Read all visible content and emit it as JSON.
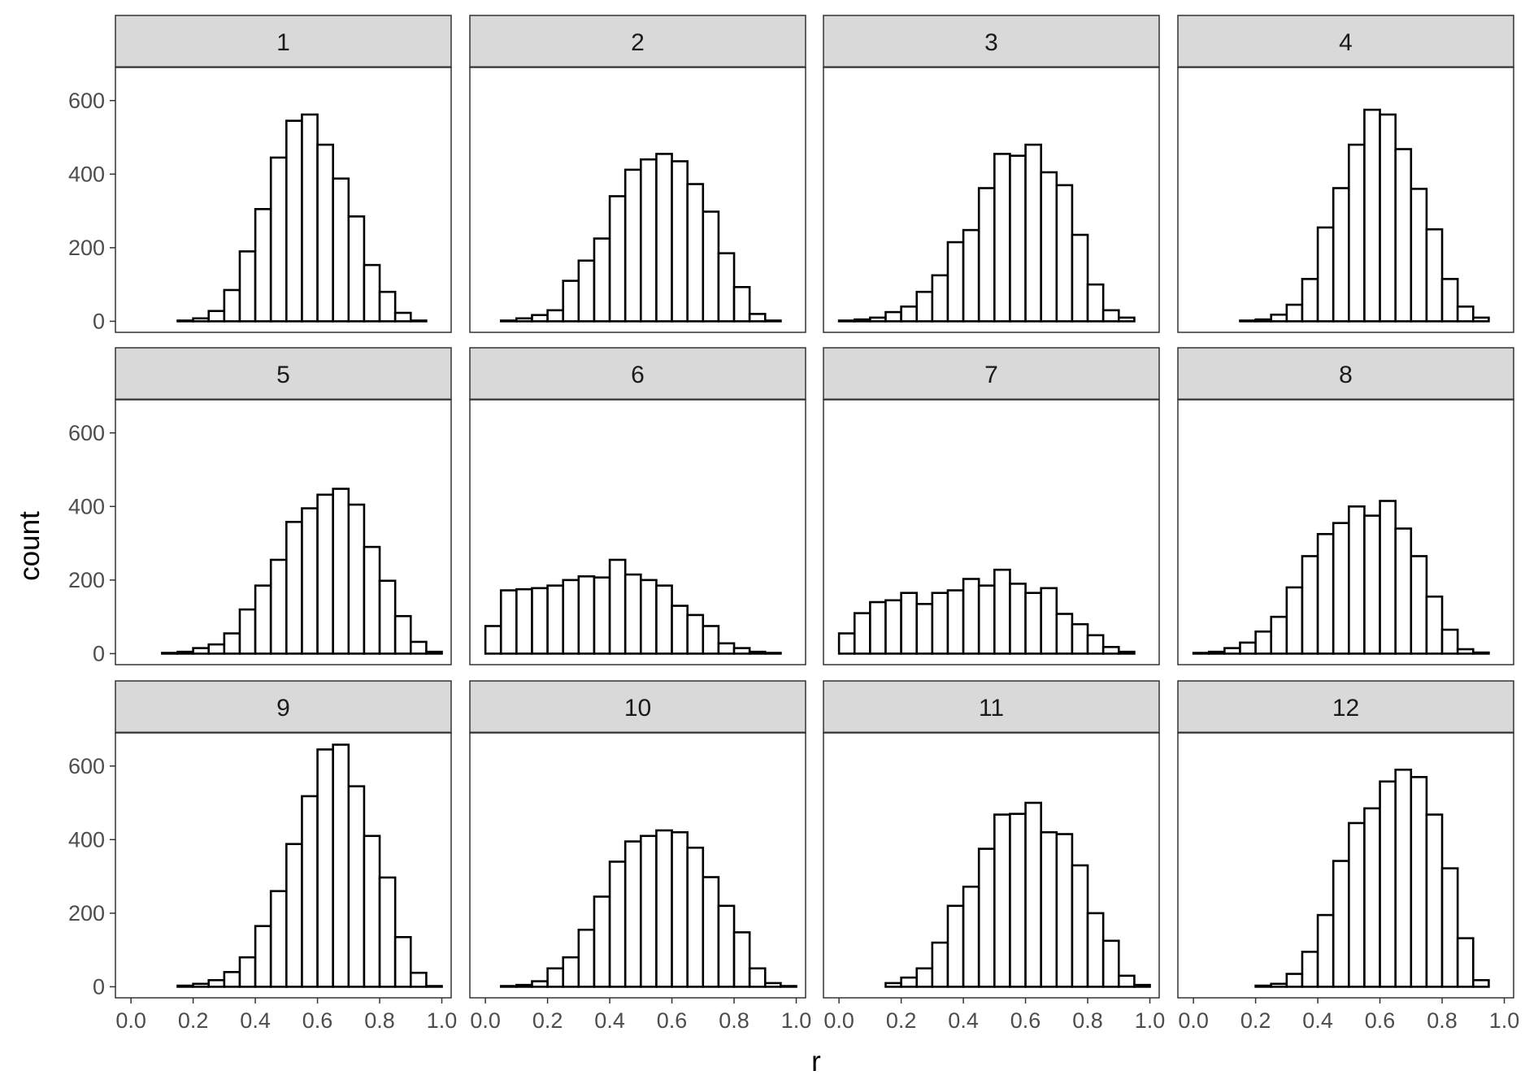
{
  "chart_data": {
    "type": "bar",
    "xlabel": "r",
    "ylabel": "count",
    "xlim": [
      -0.05,
      1.03
    ],
    "ylim": [
      -30,
      690
    ],
    "xticks": [
      "0.0",
      "0.2",
      "0.4",
      "0.6",
      "0.8",
      "1.0"
    ],
    "yticks": [
      "0",
      "200",
      "400",
      "600"
    ],
    "bin_width": 0.05,
    "bin_centers": [
      -0.025,
      0.025,
      0.075,
      0.125,
      0.175,
      0.225,
      0.275,
      0.325,
      0.375,
      0.425,
      0.475,
      0.525,
      0.575,
      0.625,
      0.675,
      0.725,
      0.775,
      0.825,
      0.875,
      0.925,
      0.975
    ],
    "series": [
      {
        "facet": "1",
        "values": [
          0,
          0,
          0,
          0,
          2,
          8,
          28,
          85,
          190,
          305,
          445,
          545,
          562,
          480,
          388,
          285,
          153,
          80,
          23,
          2,
          0
        ]
      },
      {
        "facet": "2",
        "values": [
          0,
          0,
          2,
          8,
          17,
          30,
          110,
          165,
          225,
          340,
          412,
          440,
          455,
          435,
          373,
          298,
          185,
          93,
          20,
          2,
          0
        ]
      },
      {
        "facet": "3",
        "values": [
          0,
          2,
          5,
          10,
          25,
          40,
          80,
          125,
          215,
          248,
          362,
          455,
          450,
          480,
          405,
          370,
          235,
          100,
          30,
          10,
          0
        ]
      },
      {
        "facet": "4",
        "values": [
          0,
          0,
          0,
          0,
          2,
          5,
          18,
          45,
          115,
          255,
          362,
          480,
          575,
          562,
          468,
          360,
          250,
          115,
          40,
          10,
          0
        ]
      },
      {
        "facet": "5",
        "values": [
          0,
          0,
          0,
          2,
          5,
          15,
          25,
          55,
          120,
          185,
          255,
          358,
          395,
          432,
          448,
          405,
          290,
          198,
          102,
          32,
          5
        ]
      },
      {
        "facet": "6",
        "values": [
          0,
          75,
          172,
          175,
          178,
          185,
          200,
          210,
          207,
          255,
          215,
          200,
          185,
          130,
          105,
          75,
          28,
          15,
          5,
          2,
          0
        ]
      },
      {
        "facet": "7",
        "values": [
          0,
          55,
          110,
          140,
          145,
          165,
          135,
          165,
          172,
          203,
          185,
          228,
          190,
          165,
          178,
          108,
          80,
          50,
          18,
          5,
          0
        ]
      },
      {
        "facet": "8",
        "values": [
          0,
          2,
          5,
          15,
          30,
          60,
          100,
          180,
          265,
          325,
          355,
          400,
          375,
          415,
          340,
          265,
          155,
          65,
          12,
          3,
          0
        ]
      },
      {
        "facet": "9",
        "values": [
          0,
          0,
          0,
          0,
          3,
          8,
          18,
          40,
          80,
          165,
          260,
          388,
          518,
          645,
          658,
          545,
          410,
          297,
          135,
          38,
          2
        ]
      },
      {
        "facet": "10",
        "values": [
          0,
          0,
          2,
          5,
          15,
          50,
          80,
          155,
          245,
          340,
          395,
          410,
          425,
          420,
          378,
          298,
          220,
          148,
          50,
          10,
          2
        ]
      },
      {
        "facet": "11",
        "values": [
          0,
          0,
          0,
          0,
          10,
          25,
          50,
          120,
          220,
          272,
          375,
          468,
          470,
          500,
          420,
          415,
          330,
          200,
          125,
          30,
          5
        ]
      },
      {
        "facet": "12",
        "values": [
          0,
          0,
          0,
          0,
          0,
          3,
          8,
          35,
          95,
          195,
          342,
          445,
          485,
          558,
          590,
          570,
          468,
          322,
          132,
          18,
          0
        ]
      }
    ]
  }
}
